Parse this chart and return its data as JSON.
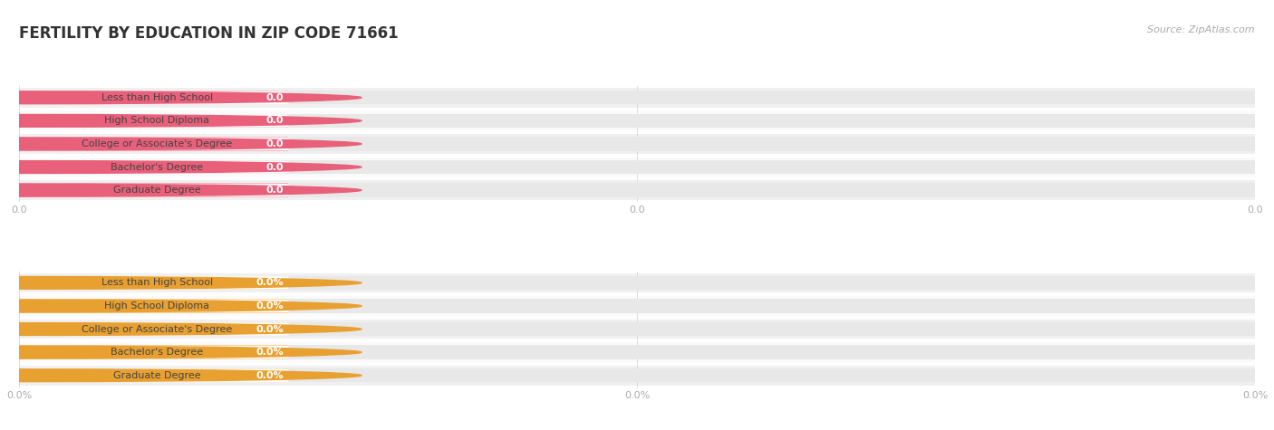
{
  "title": "FERTILITY BY EDUCATION IN ZIP CODE 71661",
  "source": "Source: ZipAtlas.com",
  "categories": [
    "Less than High School",
    "High School Diploma",
    "College or Associate's Degree",
    "Bachelor's Degree",
    "Graduate Degree"
  ],
  "top_values": [
    0.0,
    0.0,
    0.0,
    0.0,
    0.0
  ],
  "bottom_values": [
    0.0,
    0.0,
    0.0,
    0.0,
    0.0
  ],
  "top_bar_color": "#f5a3b8",
  "top_circle_color": "#e8607a",
  "bottom_bar_color": "#f5ca8a",
  "bottom_circle_color": "#e8a030",
  "bar_bg_color": "#e8e8e8",
  "row_even_color": "#f0f0f0",
  "row_odd_color": "#fafafa",
  "label_box_color": "#ffffff",
  "label_text_color": "#444444",
  "value_text_color": "#ffffff",
  "axis_text_color": "#aaaaaa",
  "title_color": "#333333",
  "source_color": "#aaaaaa",
  "background_color": "#ffffff",
  "grid_color": "#dddddd",
  "figsize": [
    14.06,
    4.75
  ],
  "title_fontsize": 12,
  "label_fontsize": 8,
  "value_fontsize": 8,
  "axis_fontsize": 8,
  "source_fontsize": 8
}
